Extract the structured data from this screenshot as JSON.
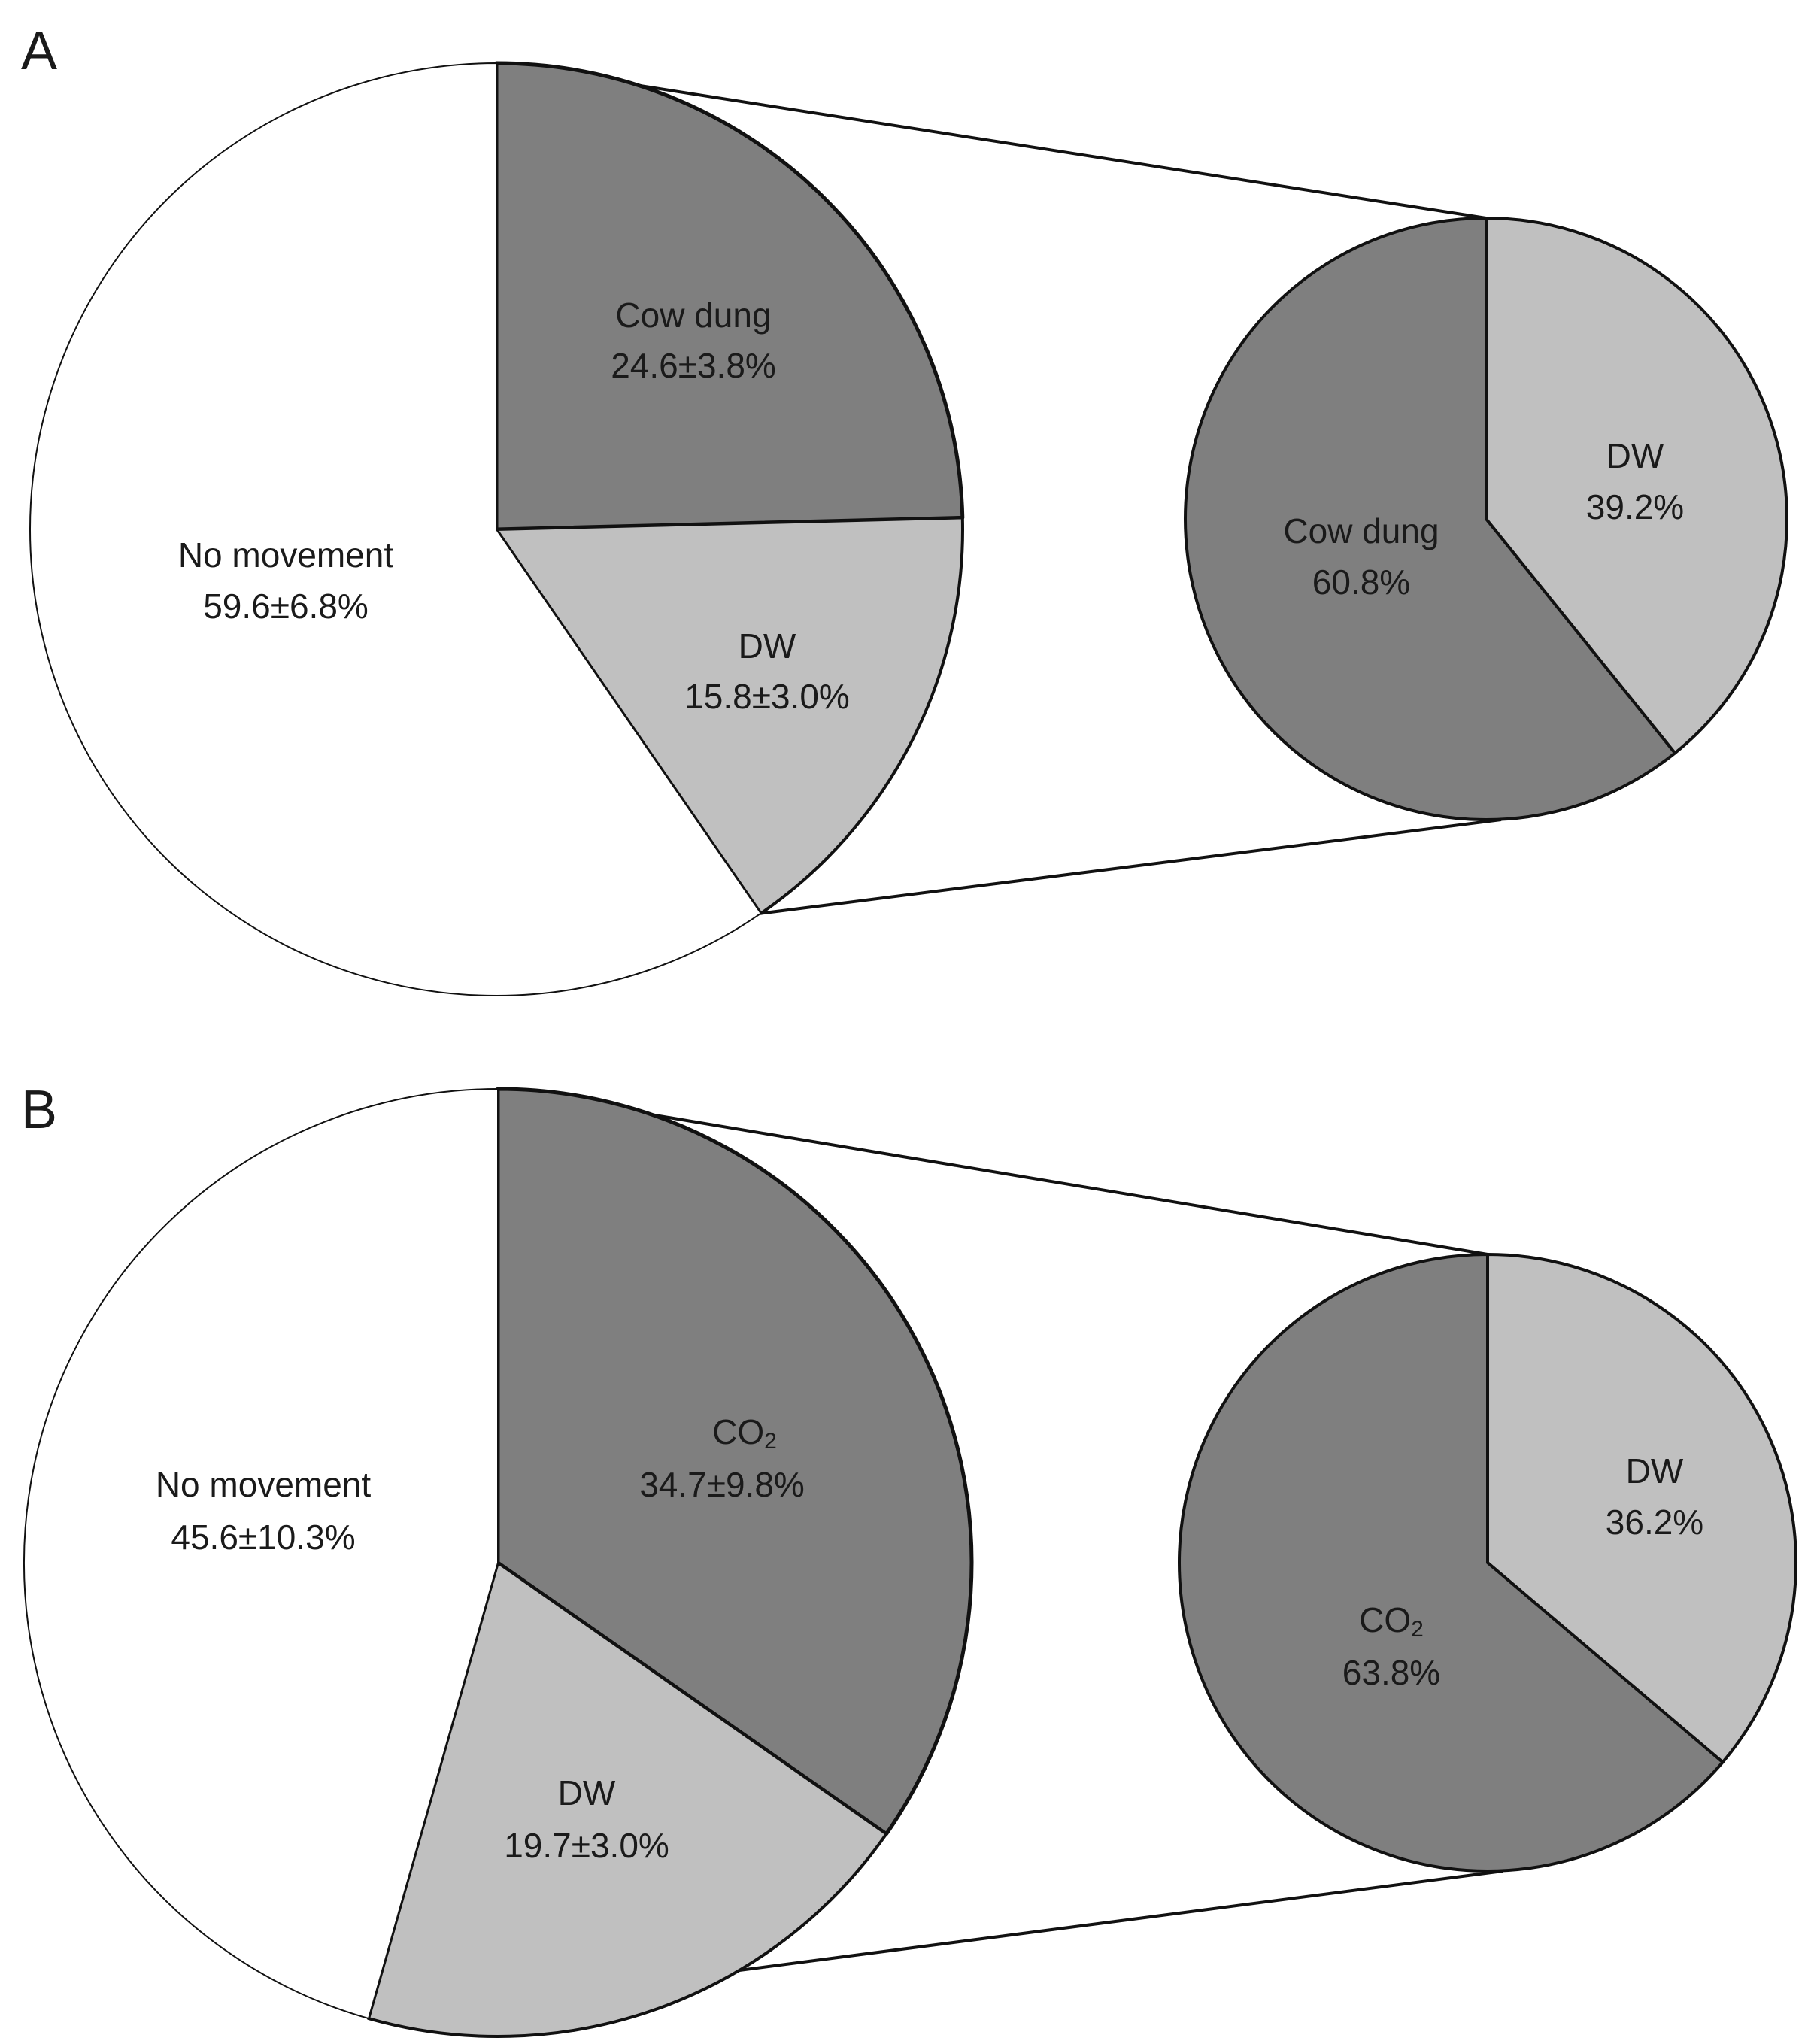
{
  "chart_data": [
    {
      "type": "pie",
      "panel": "A",
      "main": {
        "slices": [
          {
            "name": "Cow dung",
            "value": 24.6,
            "label": "Cow dung",
            "value_label": "24.6±3.8%",
            "color": "#7f7f7f"
          },
          {
            "name": "DW",
            "value": 15.8,
            "label": "DW",
            "value_label": "15.8±3.0%",
            "color": "#c0c0c0"
          },
          {
            "name": "No movement",
            "value": 59.6,
            "label": "No movement",
            "value_label": "59.6±6.8%",
            "color": "#ffffff"
          }
        ]
      },
      "breakdown": {
        "slices": [
          {
            "name": "DW",
            "value": 39.2,
            "label": "DW",
            "value_label": "39.2%",
            "color": "#c0c0c0"
          },
          {
            "name": "Cow dung",
            "value": 60.8,
            "label": "Cow dung",
            "value_label": "60.8%",
            "color": "#7f7f7f"
          }
        ]
      }
    },
    {
      "type": "pie",
      "panel": "B",
      "main": {
        "slices": [
          {
            "name": "CO2",
            "value": 34.7,
            "label": "CO",
            "label_sub": "2",
            "value_label": "34.7±9.8%",
            "color": "#7f7f7f"
          },
          {
            "name": "DW",
            "value": 19.7,
            "label": "DW",
            "value_label": "19.7±3.0%",
            "color": "#c0c0c0"
          },
          {
            "name": "No movement",
            "value": 45.6,
            "label": "No movement",
            "value_label": "45.6±10.3%",
            "color": "#ffffff"
          }
        ]
      },
      "breakdown": {
        "slices": [
          {
            "name": "DW",
            "value": 36.2,
            "label": "DW",
            "value_label": "36.2%",
            "color": "#c0c0c0"
          },
          {
            "name": "CO2",
            "value": 63.8,
            "label": "CO",
            "label_sub": "2",
            "value_label": "63.8%",
            "color": "#7f7f7f"
          }
        ]
      }
    }
  ]
}
